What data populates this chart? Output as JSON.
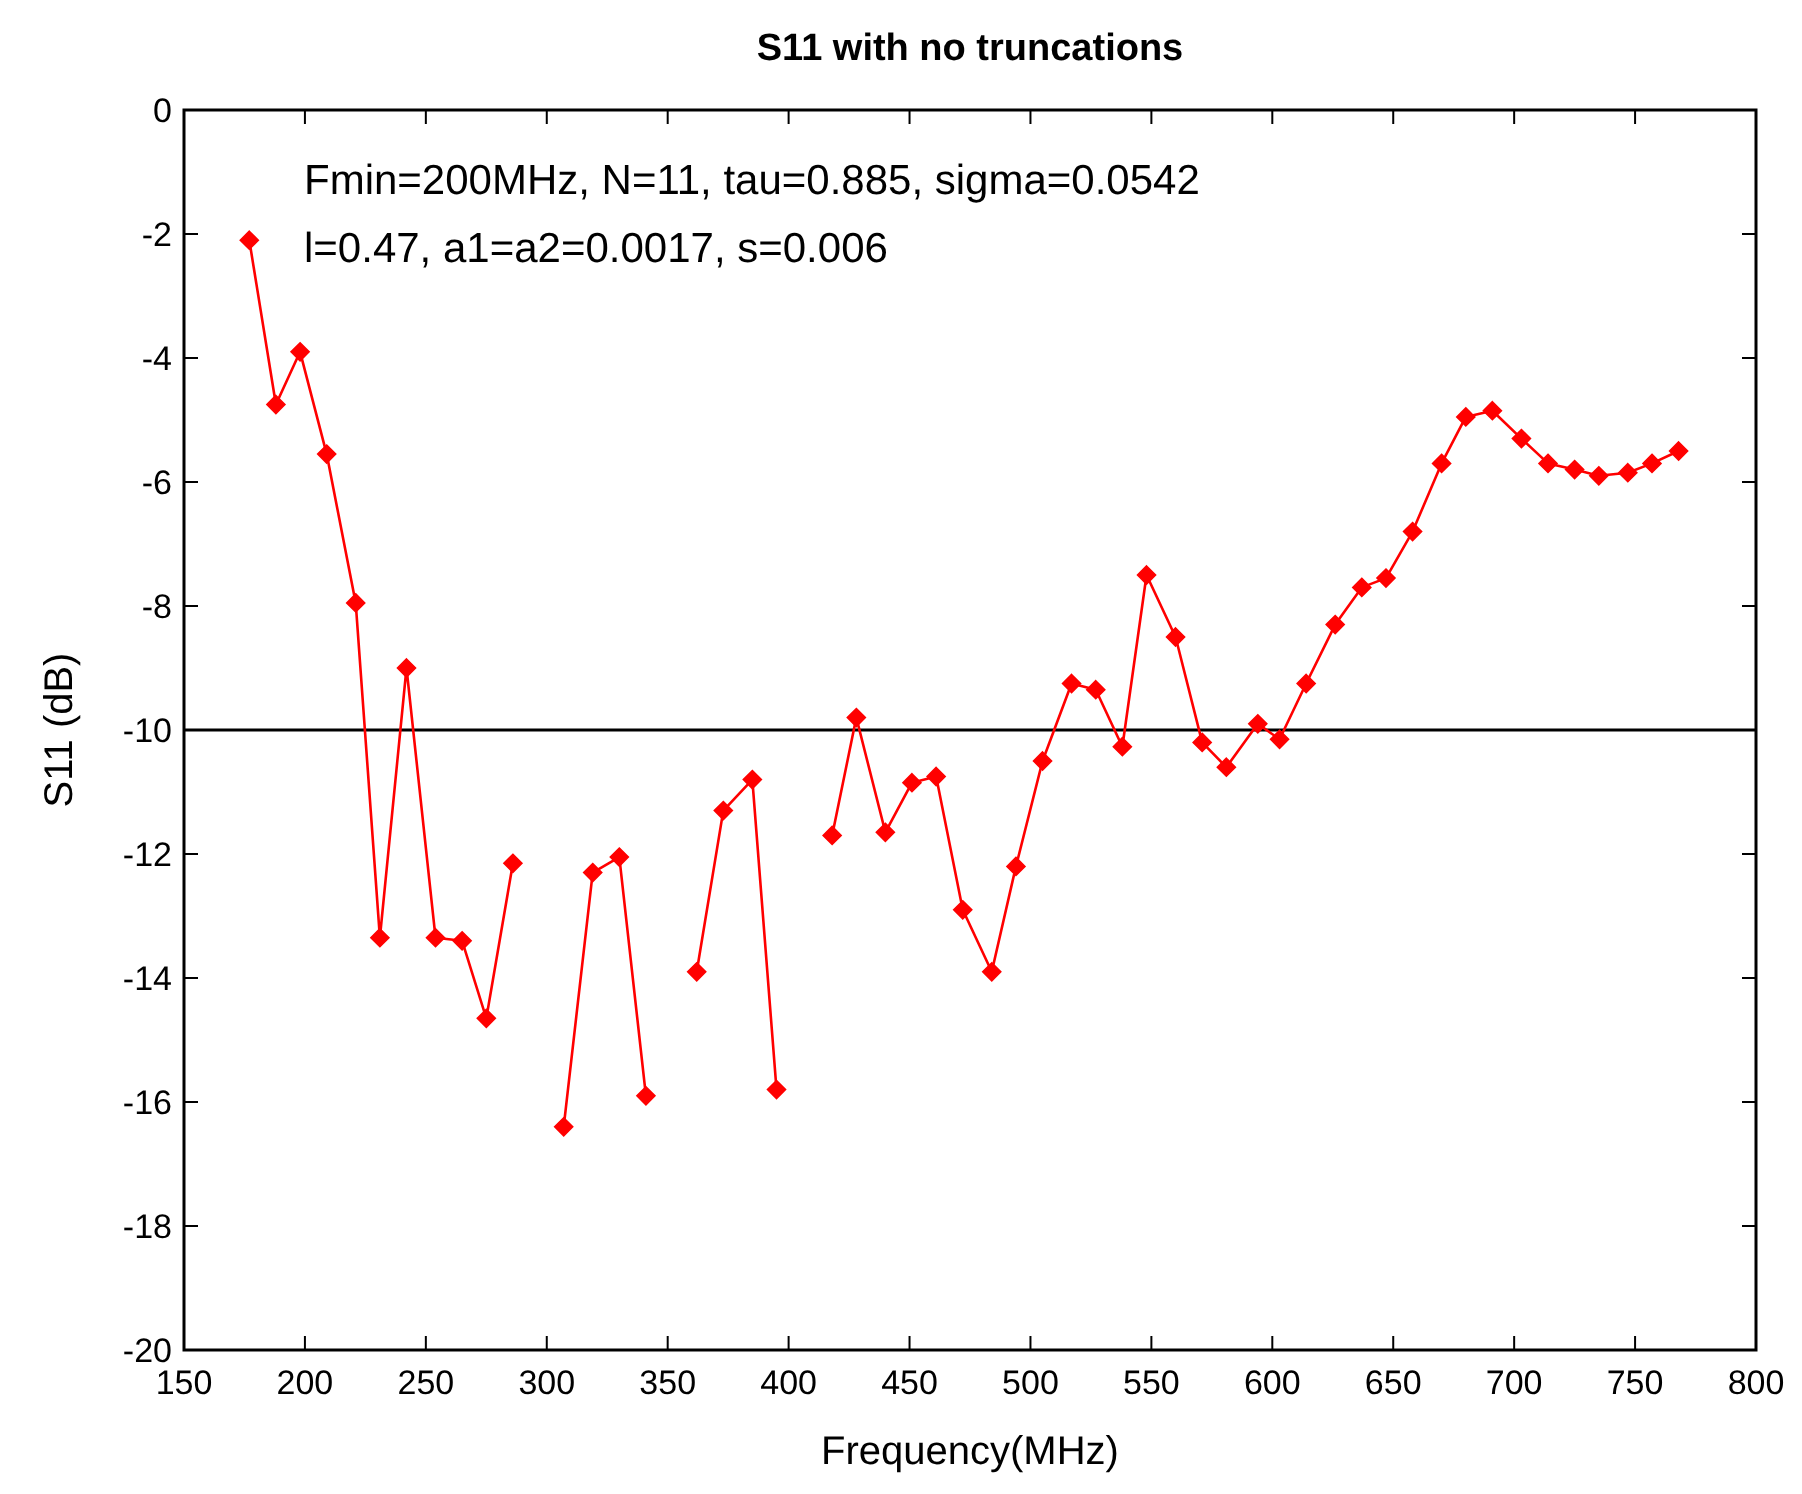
{
  "chart_data": {
    "type": "line",
    "title": "S11 with no truncations",
    "xlabel": "Frequency(MHz)",
    "ylabel": "S11 (dB)",
    "annotations": [
      "Fmin=200MHz, N=11, tau=0.885, sigma=0.0542",
      "l=0.47, a1=a2=0.0017, s=0.006"
    ],
    "xlim": [
      150,
      800
    ],
    "xticks": [
      150,
      200,
      250,
      300,
      350,
      400,
      450,
      500,
      550,
      600,
      650,
      700,
      750,
      800
    ],
    "ylim": [
      -20,
      0
    ],
    "yticks": [
      -20,
      -18,
      -16,
      -14,
      -12,
      -10,
      -8,
      -6,
      -4,
      -2,
      0
    ],
    "marker": "diamond",
    "line_style": "solid",
    "ref_lines": [
      {
        "axis": "y",
        "value": -10,
        "color": "#000000"
      }
    ],
    "series": [
      {
        "color": "#ff0000",
        "x": [
          177,
          188,
          198,
          209,
          221,
          231,
          242,
          254,
          265,
          275,
          286,
          297,
          307,
          319,
          330,
          341,
          351,
          362,
          373,
          385,
          395,
          406,
          418,
          428,
          440,
          451,
          461,
          472,
          484,
          494,
          505,
          517,
          527,
          538,
          548,
          560,
          571,
          581,
          594,
          603,
          614,
          626,
          637,
          647,
          658,
          670,
          680,
          691,
          703,
          714,
          725,
          735,
          747,
          757,
          768
        ],
        "values": [
          -2.1,
          -4.75,
          -3.9,
          -5.55,
          -7.95,
          -13.35,
          -9.0,
          -13.35,
          -13.4,
          -14.65,
          -12.15,
          null,
          -16.4,
          -12.3,
          -12.05,
          -15.9,
          null,
          -13.9,
          -11.3,
          -10.8,
          -15.8,
          null,
          -11.7,
          -9.8,
          -11.65,
          -10.85,
          -10.75,
          -12.9,
          -13.9,
          -12.2,
          -10.5,
          -9.25,
          -9.35,
          -10.27,
          -7.5,
          -8.5,
          -10.2,
          -10.6,
          -9.9,
          -10.15,
          -9.25,
          -8.3,
          -7.7,
          -7.55,
          -6.8,
          -5.7,
          -4.95,
          -4.85,
          -5.3,
          -5.7,
          -5.8,
          -5.9,
          -5.85,
          -5.7,
          -5.5
        ]
      }
    ]
  }
}
